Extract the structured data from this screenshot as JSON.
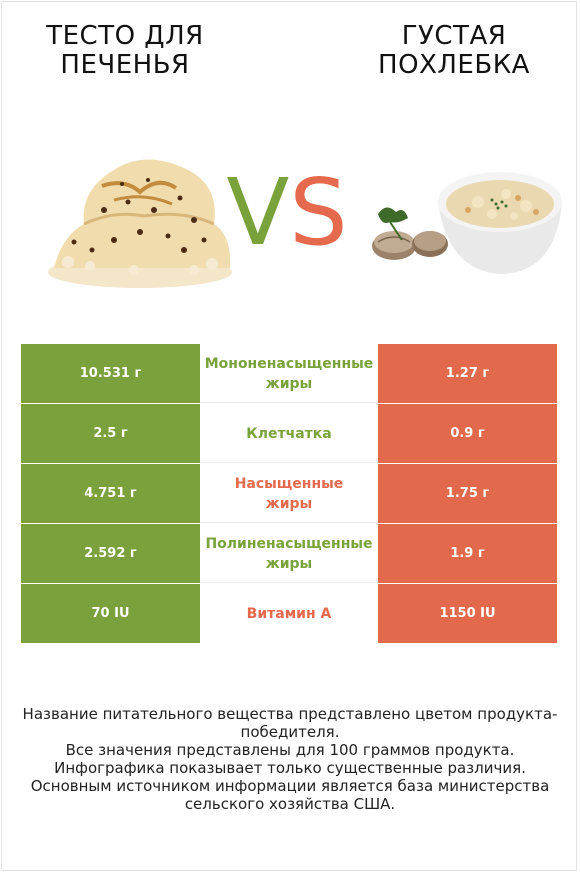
{
  "left_product": {
    "title": "ТЕСТО ДЛЯ\nПЕЧЕНЬЯ",
    "color": "#7aa13c"
  },
  "right_product": {
    "title": "ГУСТАЯ\nПОХЛЕБКА",
    "color": "#e3694c"
  },
  "vs": {
    "v": "V",
    "s": "S"
  },
  "rows": [
    {
      "left": "10.531 г",
      "label": "Мононенасыщенные жиры",
      "right": "1.27 г",
      "winner_color": "#79a33a"
    },
    {
      "left": "2.5 г",
      "label": "Клетчатка",
      "right": "0.9 г",
      "winner_color": "#79a33a"
    },
    {
      "left": "4.751 г",
      "label": "Насыщенные жиры",
      "right": "1.75 г",
      "winner_color": "#e5694c"
    },
    {
      "left": "2.592 г",
      "label": "Полиненасыщенные жиры",
      "right": "1.9 г",
      "winner_color": "#79a33a"
    },
    {
      "left": "70 IU",
      "label": "Витамин A",
      "right": "1150 IU",
      "winner_color": "#e5694c"
    }
  ],
  "footnote": [
    "Название питательного вещества представлено цветом продукта-победителя.",
    "Все значения представлены для 100 граммов продукта.",
    "Инфографика показывает только существенные различия.",
    "Основным источником информации является база министерства сельского хозяйства США."
  ]
}
